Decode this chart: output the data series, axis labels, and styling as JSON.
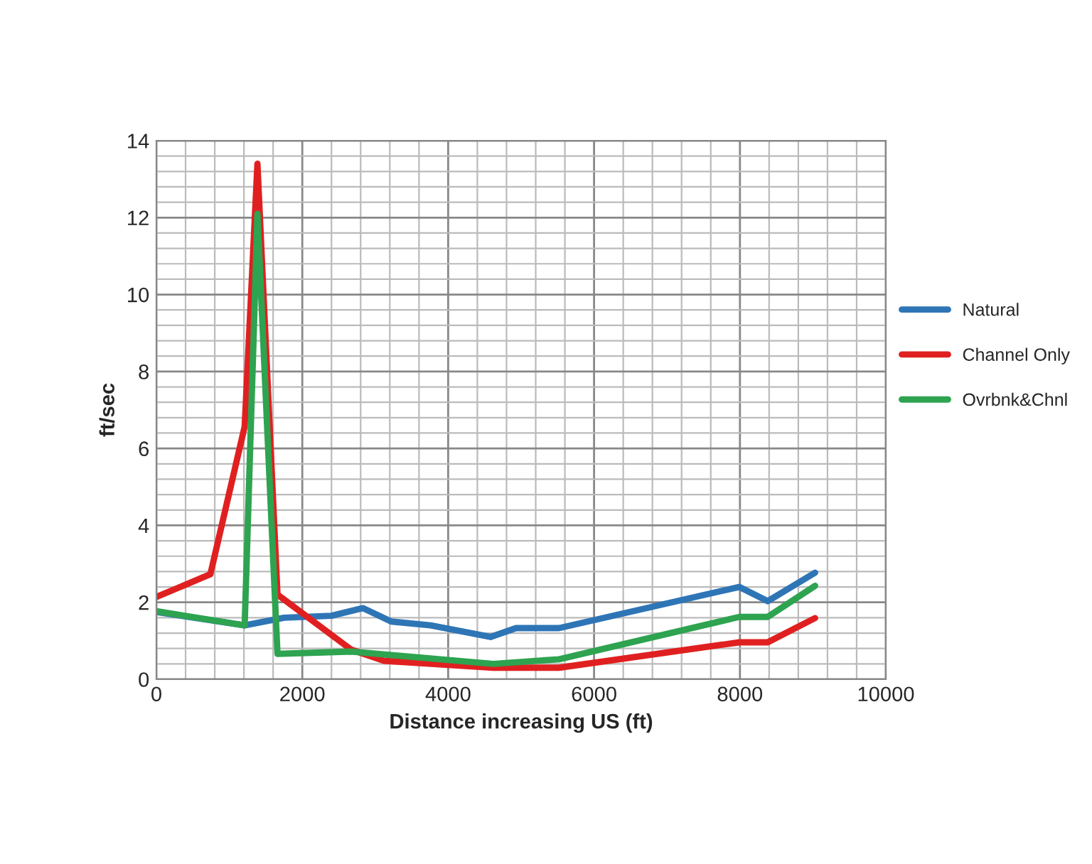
{
  "chart_data": {
    "type": "line",
    "xlabel": "Distance increasing US (ft)",
    "ylabel": "ft/sec",
    "xlim": [
      0,
      10000
    ],
    "xticks": [
      0,
      2000,
      4000,
      6000,
      8000,
      10000
    ],
    "ylim": [
      0,
      14
    ],
    "yticks": [
      0,
      2,
      4,
      6,
      8,
      10,
      12,
      14
    ],
    "grid": true,
    "legend": "right",
    "line_style": "solid",
    "marker": "none",
    "series": [
      {
        "name": "Natural",
        "color": "#2e75b6",
        "x": [
          0,
          1210,
          1750,
          2400,
          2830,
          3220,
          3760,
          4580,
          4930,
          5520,
          7990,
          8380,
          9030
        ],
        "values": [
          1.75,
          1.4,
          1.6,
          1.65,
          1.85,
          1.5,
          1.4,
          1.1,
          1.33,
          1.33,
          2.4,
          2.03,
          2.77
        ]
      },
      {
        "name": "Channel Only",
        "color": "#e02020",
        "x": [
          0,
          740,
          1210,
          1385,
          1660,
          2670,
          3120,
          4620,
          5520,
          7990,
          8380,
          9030
        ],
        "values": [
          2.14,
          2.73,
          6.57,
          13.4,
          2.2,
          0.77,
          0.48,
          0.3,
          0.3,
          0.96,
          0.96,
          1.59
        ]
      },
      {
        "name": "Ovrbnk&Chnl",
        "color": "#2ea350",
        "x": [
          0,
          1210,
          1385,
          1660,
          2670,
          4620,
          5520,
          7990,
          8380,
          9030
        ],
        "values": [
          1.77,
          1.4,
          12.1,
          0.66,
          0.72,
          0.4,
          0.52,
          1.62,
          1.62,
          2.43
        ]
      }
    ]
  }
}
